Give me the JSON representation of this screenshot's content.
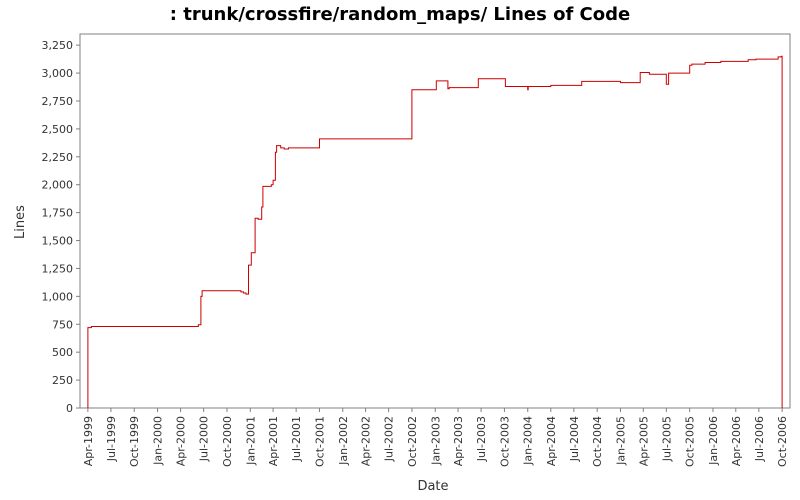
{
  "chart_data": {
    "type": "line",
    "title": ": trunk/crossfire/random_maps/ Lines of Code",
    "xlabel": "Date",
    "ylabel": "Lines",
    "ylim": [
      0,
      3350
    ],
    "xlim": [
      "1999-03-01",
      "2006-11-01"
    ],
    "y_ticks": [
      0,
      250,
      500,
      750,
      1000,
      1250,
      1500,
      1750,
      2000,
      2250,
      2500,
      2750,
      3000,
      3250
    ],
    "y_tick_labels": [
      "0",
      "250",
      "500",
      "750",
      "1,000",
      "1,250",
      "1,500",
      "1,750",
      "2,000",
      "2,250",
      "2,500",
      "2,750",
      "3,000",
      "3,250"
    ],
    "x_ticks": [
      "1999-04-01",
      "1999-07-01",
      "1999-10-01",
      "2000-01-01",
      "2000-04-01",
      "2000-07-01",
      "2000-10-01",
      "2001-01-01",
      "2001-04-01",
      "2001-07-01",
      "2001-10-01",
      "2002-01-01",
      "2002-04-01",
      "2002-07-01",
      "2002-10-01",
      "2003-01-01",
      "2003-04-01",
      "2003-07-01",
      "2003-10-01",
      "2004-01-01",
      "2004-04-01",
      "2004-07-01",
      "2004-10-01",
      "2005-01-01",
      "2005-04-01",
      "2005-07-01",
      "2005-10-01",
      "2006-01-01",
      "2006-04-01",
      "2006-07-01",
      "2006-10-01"
    ],
    "x_tick_labels": [
      "Apr-1999",
      "Jul-1999",
      "Oct-1999",
      "Jan-2000",
      "Apr-2000",
      "Jul-2000",
      "Oct-2000",
      "Jan-2001",
      "Apr-2001",
      "Jul-2001",
      "Oct-2001",
      "Jan-2002",
      "Apr-2002",
      "Jul-2002",
      "Oct-2002",
      "Jan-2003",
      "Apr-2003",
      "Jul-2003",
      "Oct-2003",
      "Jan-2004",
      "Apr-2004",
      "Jul-2004",
      "Oct-2004",
      "Jan-2005",
      "Apr-2005",
      "Jul-2005",
      "Oct-2005",
      "Jan-2006",
      "Apr-2006",
      "Jul-2006",
      "Oct-2006"
    ],
    "grid": false,
    "line_color": "#cc0000",
    "series": [
      {
        "step": true,
        "x": [
          "1999-04-01",
          "1999-04-01",
          "1999-04-15",
          "2000-06-10",
          "2000-06-20",
          "2000-06-25",
          "2000-11-25",
          "2000-12-05",
          "2000-12-15",
          "2000-12-25",
          "2001-01-05",
          "2001-01-20",
          "2001-02-01",
          "2001-02-15",
          "2001-02-20",
          "2001-03-10",
          "2001-03-25",
          "2001-04-01",
          "2001-04-10",
          "2001-04-15",
          "2001-05-01",
          "2001-05-15",
          "2001-06-01",
          "2001-06-20",
          "2001-10-01",
          "2002-10-01",
          "2003-01-05",
          "2003-02-20",
          "2003-02-25",
          "2003-06-20",
          "2003-10-05",
          "2004-01-01",
          "2004-01-03",
          "2004-04-01",
          "2004-08-01",
          "2005-01-01",
          "2005-03-20",
          "2005-04-25",
          "2005-07-01",
          "2005-07-10",
          "2005-10-01",
          "2005-10-10",
          "2005-12-01",
          "2006-02-01",
          "2006-05-20",
          "2006-06-20",
          "2006-09-15",
          "2006-09-28",
          "2006-10-01"
        ],
        "y": [
          0,
          720,
          730,
          745,
          1000,
          1050,
          1040,
          1030,
          1020,
          1280,
          1390,
          1700,
          1690,
          1800,
          1985,
          1985,
          2000,
          2040,
          2290,
          2350,
          2330,
          2320,
          2330,
          2330,
          2410,
          2850,
          2930,
          2860,
          2870,
          2950,
          2880,
          2850,
          2880,
          2890,
          2925,
          2915,
          3005,
          2990,
          2900,
          3000,
          3070,
          3080,
          3095,
          3105,
          3120,
          3125,
          3145,
          3150,
          3155
        ]
      }
    ]
  }
}
